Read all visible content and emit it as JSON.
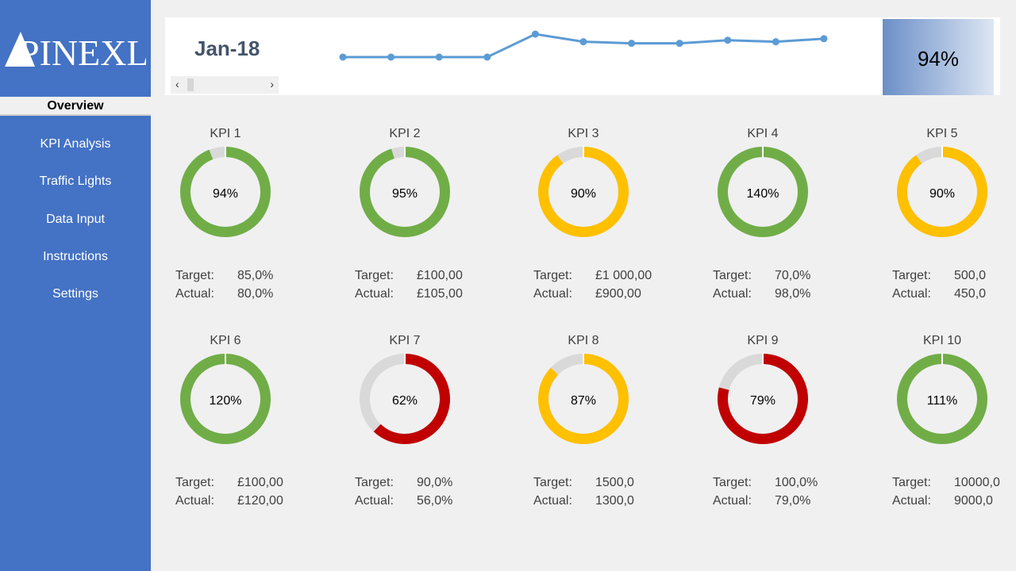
{
  "brand": {
    "logo_text": "PINEXL"
  },
  "sidebar": {
    "items": [
      {
        "label": "Overview",
        "active": true
      },
      {
        "label": "KPI Analysis"
      },
      {
        "label": "Traffic Lights"
      },
      {
        "label": "Data Input"
      },
      {
        "label": "Instructions"
      },
      {
        "label": "Settings"
      }
    ]
  },
  "header": {
    "date": "Jan-18",
    "scroll_left": "‹",
    "scroll_right": "›",
    "total": "94%"
  },
  "sparkline": {
    "color": "#5b9bd5",
    "values": [
      80,
      80,
      80,
      80,
      95,
      90,
      89,
      89,
      91,
      90,
      92
    ]
  },
  "colors": {
    "green": "#70ad47",
    "amber": "#ffc000",
    "red": "#c00000",
    "grey": "#d9d9d9"
  },
  "labels": {
    "target": "Target:",
    "actual": "Actual:"
  },
  "kpis": [
    {
      "title": "KPI 1",
      "pct": "94%",
      "value": 0.94,
      "status": "green",
      "target": "85,0%",
      "actual": "80,0%"
    },
    {
      "title": "KPI 2",
      "pct": "95%",
      "value": 0.95,
      "status": "green",
      "target": "£100,00",
      "actual": "£105,00"
    },
    {
      "title": "KPI 3",
      "pct": "90%",
      "value": 0.9,
      "status": "amber",
      "target": "£1 000,00",
      "actual": "£900,00"
    },
    {
      "title": "KPI 4",
      "pct": "140%",
      "value": 1.4,
      "status": "green",
      "target": "70,0%",
      "actual": "98,0%"
    },
    {
      "title": "KPI 5",
      "pct": "90%",
      "value": 0.9,
      "status": "amber",
      "target": "500,0",
      "actual": "450,0"
    },
    {
      "title": "KPI 6",
      "pct": "120%",
      "value": 1.2,
      "status": "green",
      "target": "£100,00",
      "actual": "£120,00"
    },
    {
      "title": "KPI 7",
      "pct": "62%",
      "value": 0.62,
      "status": "red",
      "target": "90,0%",
      "actual": "56,0%"
    },
    {
      "title": "KPI 8",
      "pct": "87%",
      "value": 0.87,
      "status": "amber",
      "target": "1500,0",
      "actual": "1300,0"
    },
    {
      "title": "KPI 9",
      "pct": "79%",
      "value": 0.79,
      "status": "red",
      "target": "100,0%",
      "actual": "79,0%"
    },
    {
      "title": "KPI 10",
      "pct": "111%",
      "value": 1.11,
      "status": "green",
      "target": "10000,0",
      "actual": "9000,0"
    }
  ]
}
